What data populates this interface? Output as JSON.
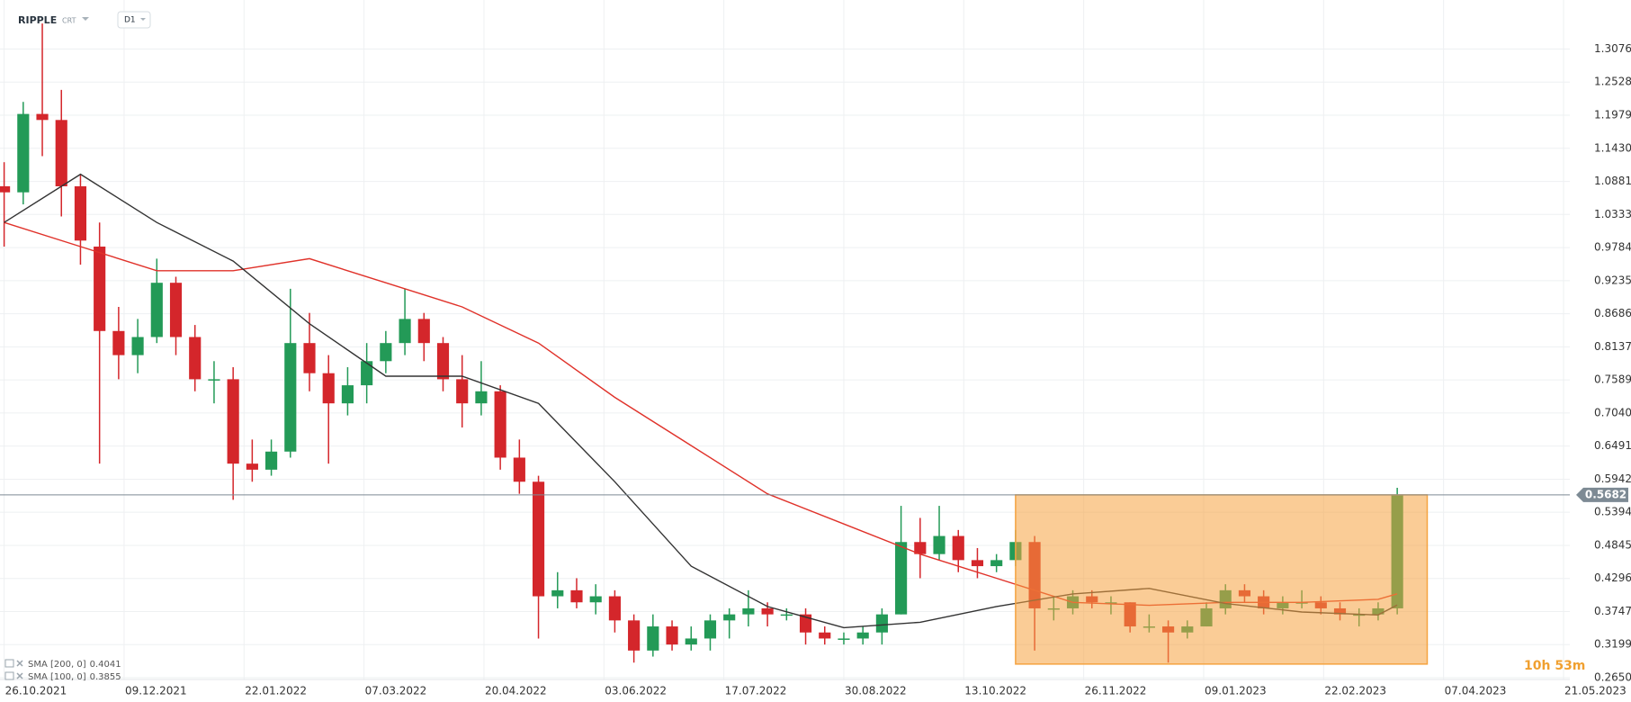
{
  "header": {
    "symbol": "RIPPLE",
    "source": "CRT",
    "timeframe": "D1"
  },
  "chart_data": {
    "type": "candlestick",
    "x": [
      "26.10.2021",
      "02.11.2021",
      "09.11.2021",
      "16.11.2021",
      "23.11.2021",
      "30.11.2021",
      "07.12.2021",
      "14.12.2021",
      "21.12.2021",
      "28.12.2021",
      "04.01.2022",
      "11.01.2022",
      "18.01.2022",
      "25.01.2022",
      "01.02.2022",
      "08.02.2022",
      "15.02.2022",
      "22.02.2022",
      "01.03.2022",
      "08.03.2022",
      "15.03.2022",
      "22.03.2022",
      "29.03.2022",
      "05.04.2022",
      "12.04.2022",
      "19.04.2022",
      "26.04.2022",
      "03.05.2022",
      "10.05.2022",
      "17.05.2022",
      "24.05.2022",
      "31.05.2022",
      "07.06.2022",
      "14.06.2022",
      "21.06.2022",
      "28.06.2022",
      "05.07.2022",
      "12.07.2022",
      "19.07.2022",
      "26.07.2022",
      "02.08.2022",
      "09.08.2022",
      "16.08.2022",
      "23.08.2022",
      "30.08.2022",
      "06.09.2022",
      "13.09.2022",
      "20.09.2022",
      "27.09.2022",
      "04.10.2022",
      "11.10.2022",
      "18.10.2022",
      "25.10.2022",
      "01.11.2022",
      "08.11.2022",
      "15.11.2022",
      "22.11.2022",
      "29.11.2022",
      "06.12.2022",
      "13.12.2022",
      "20.12.2022",
      "27.12.2022",
      "03.01.2023",
      "10.01.2023",
      "17.01.2023",
      "24.01.2023",
      "31.01.2023",
      "07.02.2023",
      "14.02.2023",
      "21.02.2023",
      "28.02.2023",
      "07.03.2023",
      "14.03.2023",
      "21.03.2023"
    ],
    "open": [
      1.08,
      1.07,
      1.2,
      1.19,
      1.08,
      0.98,
      0.84,
      0.8,
      0.83,
      0.92,
      0.83,
      0.76,
      0.76,
      0.62,
      0.61,
      0.64,
      0.82,
      0.77,
      0.72,
      0.75,
      0.79,
      0.82,
      0.86,
      0.82,
      0.76,
      0.72,
      0.74,
      0.63,
      0.59,
      0.4,
      0.41,
      0.39,
      0.4,
      0.36,
      0.31,
      0.35,
      0.32,
      0.33,
      0.36,
      0.37,
      0.38,
      0.37,
      0.37,
      0.34,
      0.33,
      0.33,
      0.34,
      0.37,
      0.49,
      0.47,
      0.5,
      0.46,
      0.45,
      0.46,
      0.49,
      0.38,
      0.38,
      0.4,
      0.39,
      0.39,
      0.35,
      0.35,
      0.34,
      0.35,
      0.38,
      0.41,
      0.4,
      0.38,
      0.39,
      0.39,
      0.38,
      0.37,
      0.37,
      0.38
    ],
    "high": [
      1.12,
      1.22,
      1.35,
      1.24,
      1.1,
      1.02,
      0.88,
      0.86,
      0.96,
      0.93,
      0.85,
      0.79,
      0.78,
      0.66,
      0.66,
      0.91,
      0.87,
      0.8,
      0.78,
      0.82,
      0.84,
      0.91,
      0.87,
      0.83,
      0.8,
      0.79,
      0.75,
      0.66,
      0.6,
      0.44,
      0.43,
      0.42,
      0.41,
      0.37,
      0.37,
      0.36,
      0.35,
      0.37,
      0.38,
      0.41,
      0.39,
      0.38,
      0.38,
      0.35,
      0.34,
      0.35,
      0.38,
      0.55,
      0.53,
      0.55,
      0.51,
      0.48,
      0.47,
      0.51,
      0.5,
      0.4,
      0.41,
      0.41,
      0.4,
      0.39,
      0.37,
      0.36,
      0.36,
      0.39,
      0.42,
      0.42,
      0.41,
      0.4,
      0.41,
      0.4,
      0.39,
      0.38,
      0.39,
      0.58
    ],
    "low": [
      0.98,
      1.05,
      1.13,
      1.03,
      0.95,
      0.62,
      0.76,
      0.77,
      0.82,
      0.8,
      0.74,
      0.72,
      0.56,
      0.59,
      0.6,
      0.63,
      0.74,
      0.62,
      0.7,
      0.72,
      0.77,
      0.8,
      0.79,
      0.74,
      0.68,
      0.7,
      0.61,
      0.57,
      0.33,
      0.38,
      0.38,
      0.37,
      0.34,
      0.29,
      0.3,
      0.31,
      0.31,
      0.31,
      0.33,
      0.35,
      0.35,
      0.36,
      0.32,
      0.32,
      0.32,
      0.32,
      0.32,
      0.37,
      0.43,
      0.46,
      0.44,
      0.43,
      0.44,
      0.45,
      0.31,
      0.36,
      0.37,
      0.38,
      0.37,
      0.34,
      0.34,
      0.29,
      0.33,
      0.35,
      0.37,
      0.39,
      0.37,
      0.37,
      0.38,
      0.37,
      0.36,
      0.35,
      0.36,
      0.37
    ],
    "close": [
      1.07,
      1.2,
      1.19,
      1.08,
      0.99,
      0.84,
      0.8,
      0.83,
      0.92,
      0.83,
      0.76,
      0.76,
      0.62,
      0.61,
      0.64,
      0.82,
      0.77,
      0.72,
      0.75,
      0.79,
      0.82,
      0.86,
      0.82,
      0.76,
      0.72,
      0.74,
      0.63,
      0.59,
      0.4,
      0.41,
      0.39,
      0.4,
      0.36,
      0.31,
      0.35,
      0.32,
      0.33,
      0.36,
      0.37,
      0.38,
      0.37,
      0.37,
      0.34,
      0.33,
      0.33,
      0.34,
      0.37,
      0.49,
      0.47,
      0.5,
      0.46,
      0.45,
      0.46,
      0.49,
      0.38,
      0.38,
      0.4,
      0.39,
      0.39,
      0.35,
      0.35,
      0.34,
      0.35,
      0.38,
      0.41,
      0.4,
      0.38,
      0.39,
      0.39,
      0.38,
      0.37,
      0.37,
      0.38,
      0.5682
    ],
    "up_color": "#239a57",
    "down_color": "#d4262b",
    "series": [
      {
        "name": "SMA [200, 0]",
        "color": "#e0322a",
        "x": [
          "26.10.2021",
          "23.11.2021",
          "21.12.2021",
          "18.01.2022",
          "15.02.2022",
          "15.03.2022",
          "12.04.2022",
          "10.05.2022",
          "07.06.2022",
          "05.07.2022",
          "02.08.2022",
          "30.08.2022",
          "27.09.2022",
          "25.10.2022",
          "22.11.2022",
          "20.12.2022",
          "17.01.2023",
          "14.02.2023",
          "14.03.2023",
          "21.03.2023"
        ],
        "values": [
          1.02,
          0.98,
          0.94,
          0.94,
          0.96,
          0.92,
          0.88,
          0.82,
          0.73,
          0.65,
          0.57,
          0.52,
          0.47,
          0.43,
          0.39,
          0.385,
          0.39,
          0.39,
          0.395,
          0.4041
        ]
      },
      {
        "name": "SMA [100, 0]",
        "color": "#333333",
        "x": [
          "26.10.2021",
          "23.11.2021",
          "21.12.2021",
          "18.01.2022",
          "15.02.2022",
          "15.03.2022",
          "12.04.2022",
          "10.05.2022",
          "07.06.2022",
          "05.07.2022",
          "02.08.2022",
          "30.08.2022",
          "27.09.2022",
          "25.10.2022",
          "22.11.2022",
          "20.12.2022",
          "17.01.2023",
          "14.02.2023",
          "14.03.2023",
          "21.03.2023"
        ],
        "values": [
          1.02,
          1.1,
          1.02,
          0.956,
          0.852,
          0.765,
          0.765,
          0.72,
          0.59,
          0.45,
          0.383,
          0.348,
          0.357,
          0.383,
          0.404,
          0.413,
          0.388,
          0.374,
          0.369,
          0.3855
        ]
      }
    ],
    "xlim": [
      "26.10.2021",
      "21.05.2023"
    ],
    "xticks": [
      "26.10.2021",
      "09.12.2021",
      "22.01.2022",
      "07.03.2022",
      "20.04.2022",
      "03.06.2022",
      "17.07.2022",
      "30.08.2022",
      "13.10.2022",
      "26.11.2022",
      "09.01.2023",
      "22.02.2023",
      "07.04.2023",
      "21.05.2023"
    ],
    "ylim": [
      0.262,
      1.389
    ],
    "yticks": [
      1.3076,
      1.2528,
      1.1979,
      {
        "value": 1.143,
        "label": "1.1430"
      },
      1.0881,
      1.0333,
      0.9784,
      0.9235,
      0.8686,
      0.8137,
      0.7589,
      {
        "value": 0.704,
        "label": "0.7040"
      },
      0.6491,
      0.5942,
      0.5394,
      0.4845,
      0.4296,
      0.3747,
      0.3199,
      {
        "value": 0.265,
        "label": "0.2650"
      }
    ],
    "grid": true,
    "last_price": 0.5682,
    "highlight": {
      "x": [
        "01.11.2022",
        "01.04.2023"
      ],
      "y": [
        0.2876,
        0.5682
      ],
      "color": "#f5a340"
    },
    "countdown": "10h 53m"
  }
}
